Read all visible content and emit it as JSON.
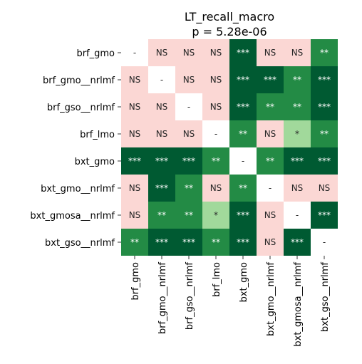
{
  "chart_data": {
    "type": "heatmap",
    "title": "LT_recall_macro",
    "subtitle": "p = 5.28e-06",
    "rows": [
      "brf_gmo",
      "brf_gmo__nrlmf",
      "brf_gso__nrlmf",
      "brf_lmo",
      "bxt_gmo",
      "bxt_gmo__nrlmf",
      "bxt_gmosa__nrlmf",
      "bxt_gso__nrlmf"
    ],
    "columns": [
      "brf_gmo",
      "brf_gmo__nrlmf",
      "brf_gso__nrlmf",
      "brf_lmo",
      "bxt_gmo",
      "bxt_gmo__nrlmf",
      "bxt_gmosa__nrlmf",
      "bxt_gso__nrlmf"
    ],
    "cells": [
      [
        "-",
        "NS",
        "NS",
        "NS",
        "***",
        "NS",
        "NS",
        "**"
      ],
      [
        "NS",
        "-",
        "NS",
        "NS",
        "***",
        "***",
        "**",
        "***"
      ],
      [
        "NS",
        "NS",
        "-",
        "NS",
        "***",
        "**",
        "**",
        "***"
      ],
      [
        "NS",
        "NS",
        "NS",
        "-",
        "**",
        "NS",
        "*",
        "**"
      ],
      [
        "***",
        "***",
        "***",
        "**",
        "-",
        "**",
        "***",
        "***"
      ],
      [
        "NS",
        "***",
        "**",
        "NS",
        "**",
        "-",
        "NS",
        "NS"
      ],
      [
        "NS",
        "**",
        "**",
        "*",
        "***",
        "NS",
        "-",
        "***"
      ],
      [
        "**",
        "***",
        "***",
        "**",
        "***",
        "NS",
        "***",
        "-"
      ]
    ],
    "colors": {
      "***": "#005a32",
      "**": "#238b45",
      "*": "#a1d99b",
      "NS": "#fbd7d4",
      "-": "#ffffff"
    },
    "text_colors": {
      "***": "#ffffff",
      "**": "#ffffff",
      "*": "#262626",
      "NS": "#262626",
      "-": "#262626"
    },
    "grid": false,
    "legend": "none"
  }
}
